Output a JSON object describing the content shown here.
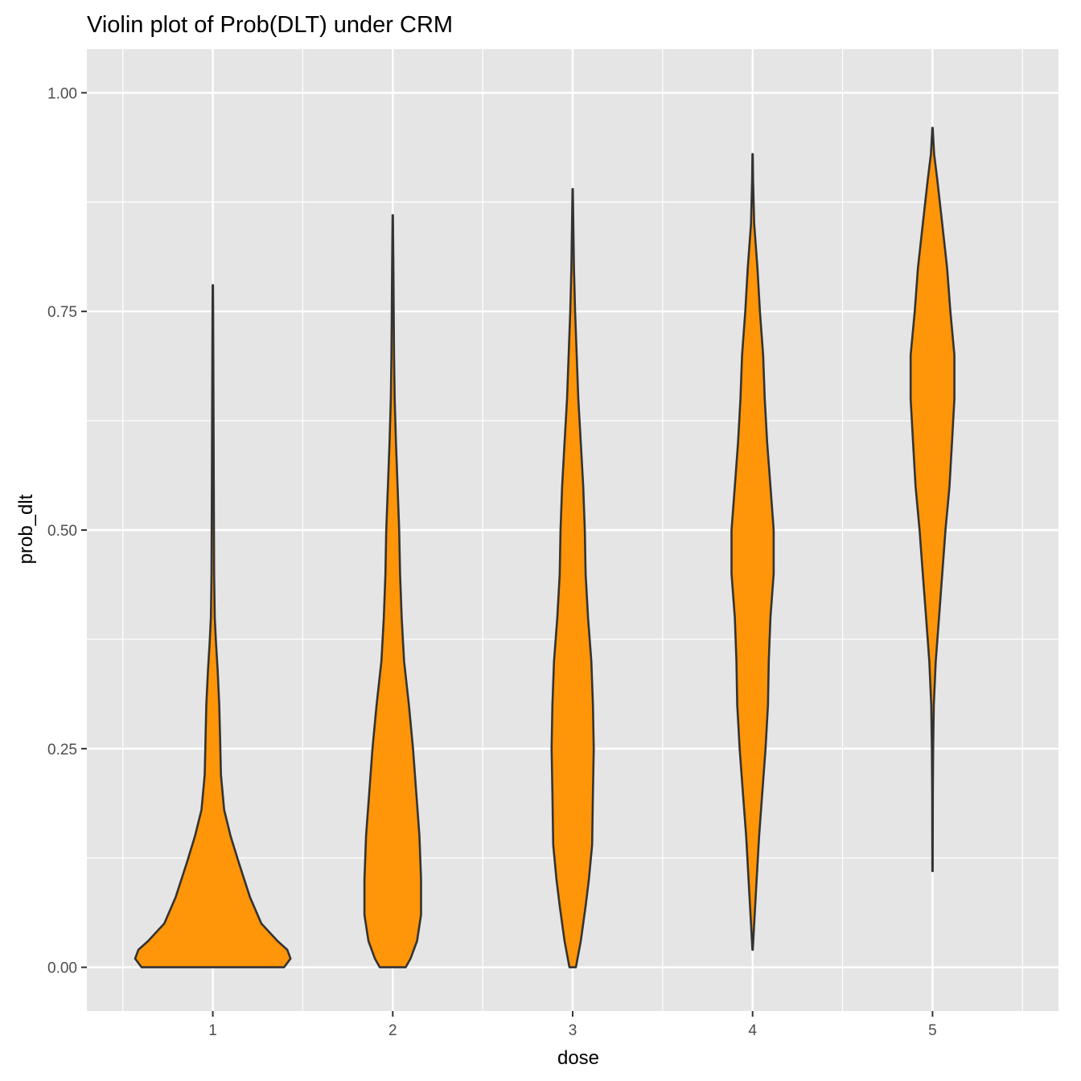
{
  "chart_data": {
    "type": "violin",
    "title": "Violin plot of Prob(DLT) under CRM",
    "xlabel": "dose",
    "ylabel": "prob_dlt",
    "categories": [
      "1",
      "2",
      "3",
      "4",
      "5"
    ],
    "y_ticks": [
      "0.00",
      "0.25",
      "0.50",
      "0.75",
      "1.00"
    ],
    "ylim": [
      -0.05,
      1.05
    ],
    "grid": true,
    "legend": "none",
    "colors": {
      "fill": "#ff9509",
      "outline": "#333333",
      "panel": "#e5e5e5",
      "grid": "#ffffff"
    },
    "violins": [
      {
        "dose": "1",
        "min": 0.0,
        "max": 0.78,
        "profile": [
          [
            0.0,
            0.44
          ],
          [
            0.01,
            0.48
          ],
          [
            0.02,
            0.46
          ],
          [
            0.03,
            0.4
          ],
          [
            0.05,
            0.3
          ],
          [
            0.08,
            0.23
          ],
          [
            0.12,
            0.16
          ],
          [
            0.15,
            0.11
          ],
          [
            0.18,
            0.07
          ],
          [
            0.22,
            0.05
          ],
          [
            0.26,
            0.045
          ],
          [
            0.3,
            0.04
          ],
          [
            0.34,
            0.03
          ],
          [
            0.37,
            0.02
          ],
          [
            0.4,
            0.012
          ],
          [
            0.45,
            0.008
          ],
          [
            0.5,
            0.007
          ],
          [
            0.55,
            0.006
          ],
          [
            0.6,
            0.005
          ],
          [
            0.65,
            0.004
          ],
          [
            0.7,
            0.003
          ],
          [
            0.75,
            0.002
          ],
          [
            0.78,
            0.001
          ]
        ]
      },
      {
        "dose": "2",
        "min": 0.0,
        "max": 0.86,
        "profile": [
          [
            0.0,
            0.08
          ],
          [
            0.01,
            0.11
          ],
          [
            0.03,
            0.15
          ],
          [
            0.06,
            0.175
          ],
          [
            0.1,
            0.175
          ],
          [
            0.15,
            0.165
          ],
          [
            0.2,
            0.145
          ],
          [
            0.25,
            0.125
          ],
          [
            0.3,
            0.1
          ],
          [
            0.35,
            0.07
          ],
          [
            0.4,
            0.055
          ],
          [
            0.45,
            0.045
          ],
          [
            0.5,
            0.04
          ],
          [
            0.55,
            0.03
          ],
          [
            0.6,
            0.02
          ],
          [
            0.65,
            0.012
          ],
          [
            0.7,
            0.008
          ],
          [
            0.75,
            0.006
          ],
          [
            0.8,
            0.004
          ],
          [
            0.86,
            0.001
          ]
        ]
      },
      {
        "dose": "3",
        "min": 0.0,
        "max": 0.89,
        "profile": [
          [
            0.0,
            0.02
          ],
          [
            0.03,
            0.05
          ],
          [
            0.07,
            0.08
          ],
          [
            0.1,
            0.1
          ],
          [
            0.14,
            0.12
          ],
          [
            0.2,
            0.125
          ],
          [
            0.25,
            0.13
          ],
          [
            0.3,
            0.125
          ],
          [
            0.35,
            0.115
          ],
          [
            0.4,
            0.095
          ],
          [
            0.45,
            0.08
          ],
          [
            0.5,
            0.075
          ],
          [
            0.55,
            0.065
          ],
          [
            0.6,
            0.05
          ],
          [
            0.65,
            0.035
          ],
          [
            0.7,
            0.025
          ],
          [
            0.75,
            0.015
          ],
          [
            0.8,
            0.008
          ],
          [
            0.85,
            0.004
          ],
          [
            0.89,
            0.001
          ]
        ]
      },
      {
        "dose": "4",
        "min": 0.02,
        "max": 0.93,
        "profile": [
          [
            0.02,
            0.001
          ],
          [
            0.05,
            0.01
          ],
          [
            0.1,
            0.025
          ],
          [
            0.15,
            0.04
          ],
          [
            0.2,
            0.06
          ],
          [
            0.25,
            0.08
          ],
          [
            0.3,
            0.095
          ],
          [
            0.35,
            0.1
          ],
          [
            0.4,
            0.11
          ],
          [
            0.45,
            0.13
          ],
          [
            0.5,
            0.13
          ],
          [
            0.55,
            0.11
          ],
          [
            0.6,
            0.09
          ],
          [
            0.65,
            0.075
          ],
          [
            0.7,
            0.065
          ],
          [
            0.75,
            0.045
          ],
          [
            0.8,
            0.03
          ],
          [
            0.85,
            0.01
          ],
          [
            0.9,
            0.003
          ],
          [
            0.93,
            0.001
          ]
        ]
      },
      {
        "dose": "5",
        "min": 0.11,
        "max": 0.96,
        "profile": [
          [
            0.11,
            0.001
          ],
          [
            0.2,
            0.002
          ],
          [
            0.25,
            0.004
          ],
          [
            0.3,
            0.008
          ],
          [
            0.35,
            0.02
          ],
          [
            0.4,
            0.04
          ],
          [
            0.45,
            0.06
          ],
          [
            0.5,
            0.08
          ],
          [
            0.55,
            0.105
          ],
          [
            0.6,
            0.12
          ],
          [
            0.65,
            0.135
          ],
          [
            0.7,
            0.135
          ],
          [
            0.75,
            0.11
          ],
          [
            0.8,
            0.09
          ],
          [
            0.85,
            0.06
          ],
          [
            0.9,
            0.03
          ],
          [
            0.93,
            0.01
          ],
          [
            0.96,
            0.001
          ]
        ]
      }
    ]
  }
}
